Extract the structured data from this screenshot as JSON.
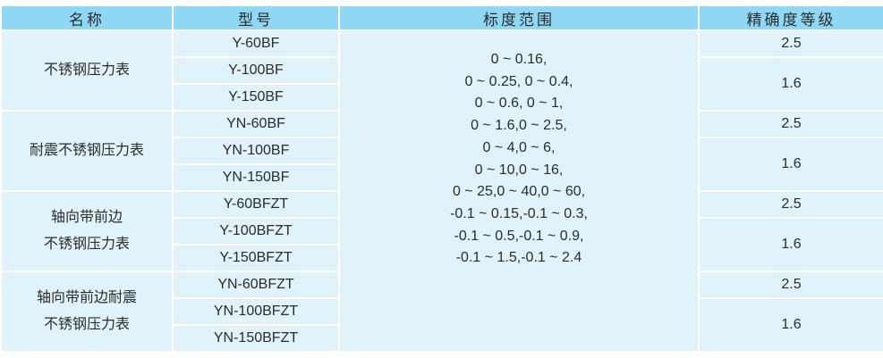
{
  "headers": [
    "名称",
    "型号",
    "标度范围",
    "精确度等级"
  ],
  "groups": [
    {
      "name": [
        "不锈钢压力表"
      ],
      "models": [
        "Y-60BF",
        "Y-100BF",
        "Y-150BF"
      ],
      "accuracy": [
        "2.5",
        "1.6"
      ]
    },
    {
      "name": [
        "耐震不锈钢压力表"
      ],
      "models": [
        "YN-60BF",
        "YN-100BF",
        "YN-150BF"
      ],
      "accuracy": [
        "2.5",
        "1.6"
      ]
    },
    {
      "name": [
        "轴向带前边",
        "不锈钢压力表"
      ],
      "models": [
        "Y-60BFZT",
        "Y-100BFZT",
        "Y-150BFZT"
      ],
      "accuracy": [
        "2.5",
        "1.6"
      ]
    },
    {
      "name": [
        "轴向带前边耐震",
        "不锈钢压力表"
      ],
      "models": [
        "YN-60BFZT",
        "YN-100BFZT",
        "YN-150BFZT"
      ],
      "accuracy": [
        "2.5",
        "1.6"
      ]
    }
  ],
  "range_lines": [
    "0 ~ 0.16,",
    "0 ~ 0.25, 0 ~ 0.4,",
    "0 ~ 0.6, 0 ~ 1,",
    "0 ~ 1.6,0 ~ 2.5,",
    "0 ~ 4,0 ~ 6,",
    "0 ~ 10,0 ~ 16,",
    "0 ~ 25,0 ~ 40,0 ~ 60,",
    "-0.1 ~ 0.15,-0.1 ~ 0.3,",
    "-0.1 ~ 0.5,-0.1 ~ 0.9,",
    "-0.1 ~ 1.5,-0.1 ~ 2.4"
  ],
  "colors": {
    "header_bg": "#8ed8f6",
    "body_bg": "#e0f3fb",
    "border": "#ffffff"
  }
}
